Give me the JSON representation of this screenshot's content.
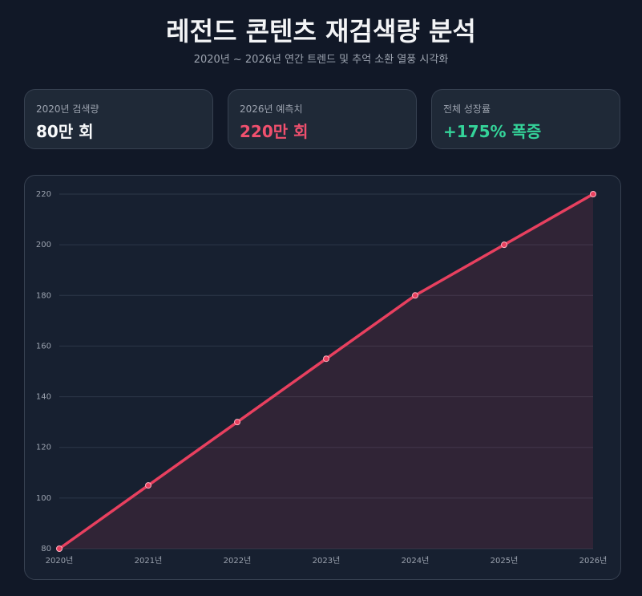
{
  "header": {
    "title": "레전드 콘텐츠 재검색량 분석",
    "subtitle": "2020년 ~ 2026년 연간 트렌드 및 추억 소환 열풍 시각화"
  },
  "cards": [
    {
      "label": "2020년 검색량",
      "value": "80만 회"
    },
    {
      "label": "2026년 예측치",
      "value": "220만 회"
    },
    {
      "label": "전체 성장률",
      "value": "+175% 폭증"
    }
  ],
  "chart_data": {
    "type": "line",
    "categories": [
      "2020년",
      "2021년",
      "2022년",
      "2023년",
      "2024년",
      "2025년",
      "2026년"
    ],
    "values": [
      80,
      105,
      130,
      155,
      180,
      200,
      220
    ],
    "color": "#e8405f",
    "ylim": [
      80,
      220
    ],
    "yticks": [
      80,
      100,
      120,
      140,
      160,
      180,
      200,
      220
    ],
    "grid": true
  }
}
